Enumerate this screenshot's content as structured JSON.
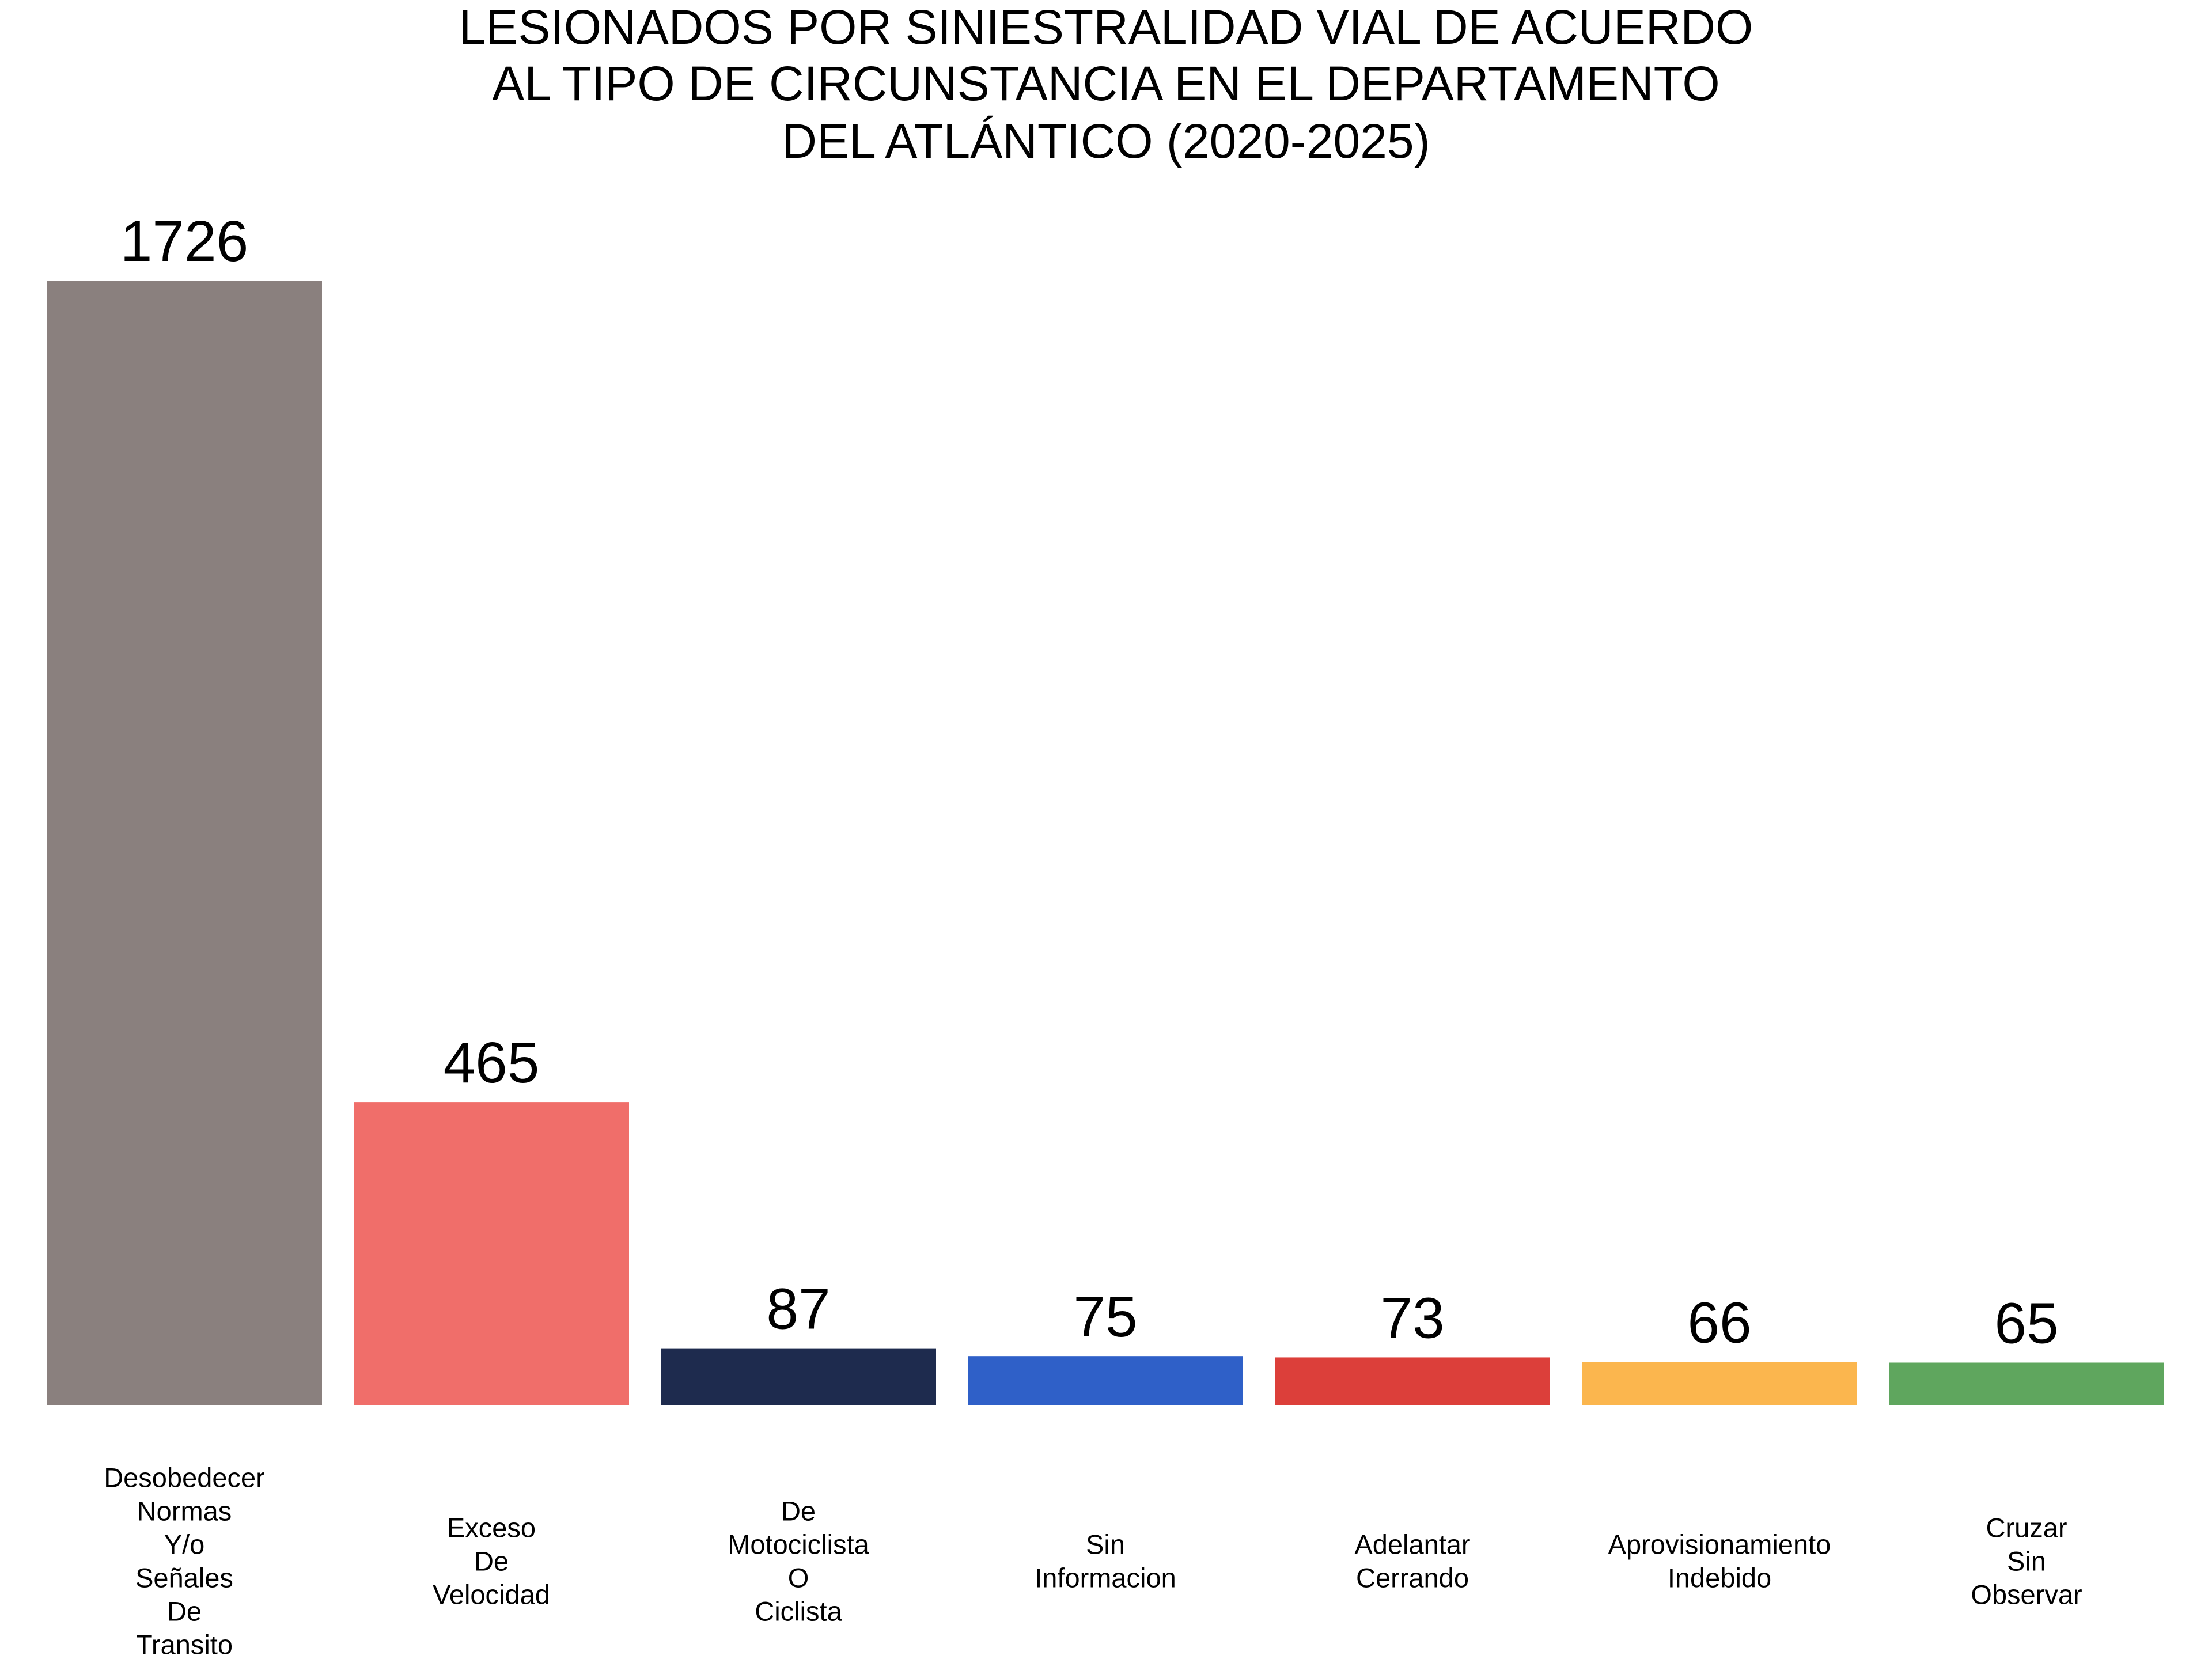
{
  "chart_data": {
    "type": "bar",
    "title": [
      "LESIONADOS POR SINIESTRALIDAD VIAL DE ACUERDO",
      "AL TIPO DE CIRCUNSTANCIA EN EL DEPARTAMENTO",
      "DEL ATLÁNTICO (2020-2025)"
    ],
    "categories": [
      "Desobedecer Normas Y/o Señales De Transito",
      "Exceso De Velocidad",
      "De Motociclista O Ciclista",
      "Sin Informacion",
      "Adelantar Cerrando",
      "Aprovisionamiento Indebido",
      "Cruzar Sin Observar"
    ],
    "values": [
      1726,
      465,
      87,
      75,
      73,
      66,
      65
    ],
    "colors": [
      "#8a807e",
      "#f06e6a",
      "#1e2b4e",
      "#2f60c8",
      "#dc3f3a",
      "#fbb64e",
      "#5fa65e"
    ]
  }
}
